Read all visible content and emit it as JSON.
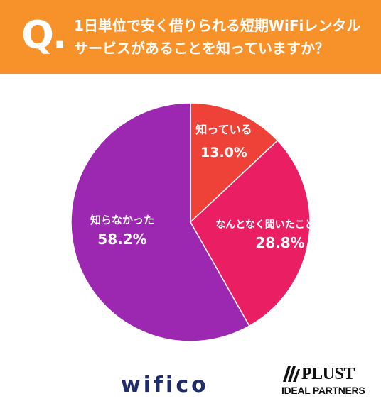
{
  "header": {
    "q_mark": "Q.",
    "question": "1日単位で安く借りられる短期WiFiレンタルサービスがあることを知っていますか？"
  },
  "colors": {
    "banner": "#F7922A",
    "slice_knew": "#EE4238",
    "slice_heard": "#E91E63",
    "slice_didnt_know": "#9C27B0"
  },
  "chart_data": {
    "type": "pie",
    "slices": [
      {
        "label": "知っている",
        "value": 13.0,
        "display": "13.0%",
        "color": "#EE4238"
      },
      {
        "label": "なんとなく聞いたことがある",
        "value": 28.8,
        "display": "28.8%",
        "color": "#E91E63"
      },
      {
        "label": "知らなかった",
        "value": 58.2,
        "display": "58.2%",
        "color": "#9C27B0"
      }
    ],
    "start": "12 o'clock",
    "direction": "clockwise"
  },
  "footer": {
    "logo_wifico": "wifico",
    "logo_plust": "PLUST",
    "logo_plust_sub": "IDEAL PARTNERS"
  }
}
